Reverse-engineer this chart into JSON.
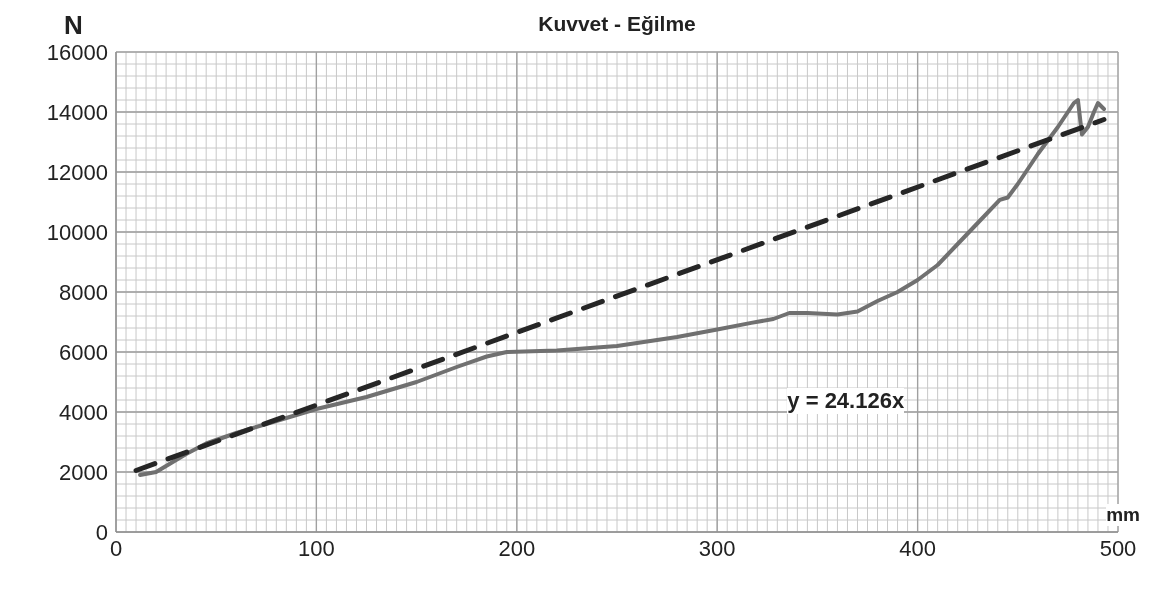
{
  "chart_data": {
    "type": "line",
    "title": "Kuvvet - Eğilme",
    "xlabel": "mm",
    "ylabel": "N",
    "xlim": [
      0,
      500
    ],
    "xticks": [
      0,
      100,
      200,
      300,
      400,
      500
    ],
    "ylim": [
      0,
      16000
    ],
    "yticks": [
      0,
      2000,
      4000,
      6000,
      8000,
      10000,
      12000,
      14000,
      16000
    ],
    "grid": true,
    "marker": "none",
    "annotations": [
      "y = 24.126x"
    ],
    "series": [
      {
        "color": "#707070",
        "line_style": "solid",
        "x": [
          12,
          20,
          25,
          35,
          45,
          60,
          80,
          100,
          125,
          150,
          170,
          185,
          195,
          220,
          250,
          280,
          300,
          317,
          328,
          336,
          345,
          360,
          370,
          380,
          390,
          400,
          410,
          420,
          430,
          441,
          445,
          450,
          460,
          470,
          478,
          480,
          482,
          485,
          488,
          490,
          493
        ],
        "values": [
          1900,
          2000,
          2200,
          2600,
          2950,
          3300,
          3700,
          4100,
          4500,
          5000,
          5500,
          5850,
          6000,
          6050,
          6200,
          6500,
          6750,
          6970,
          7100,
          7300,
          7300,
          7250,
          7350,
          7700,
          8000,
          8400,
          8900,
          9600,
          10300,
          11070,
          11150,
          11600,
          12600,
          13500,
          14300,
          14400,
          13250,
          13500,
          14000,
          14300,
          14100
        ]
      },
      {
        "type": "line",
        "color": "#262626",
        "line_style": "dashed",
        "x": [
          10,
          493
        ],
        "values": [
          2050,
          13750
        ]
      }
    ]
  }
}
